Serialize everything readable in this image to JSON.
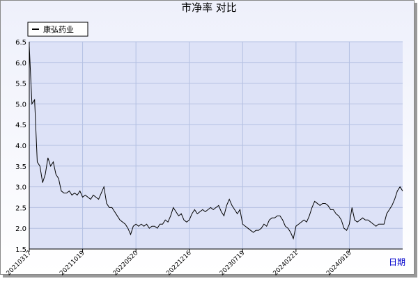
{
  "chart_data": {
    "type": "line",
    "title": "市净率  对比",
    "x_label": "日期",
    "ylim": [
      1.5,
      6.5
    ],
    "yticks": [
      1.5,
      {
        "value": 2,
        "label": "2.0"
      },
      2.5,
      {
        "value": 3,
        "label": "3.0"
      },
      3.5,
      {
        "value": 4,
        "label": "4.0"
      },
      4.5,
      {
        "value": 5,
        "label": "5.0"
      },
      5.5,
      {
        "value": 6,
        "label": "6.0"
      },
      6.5
    ],
    "xlim": [
      0,
      140
    ],
    "xticks": [
      {
        "value": 0,
        "label": "20210317"
      },
      {
        "value": 20,
        "label": "20211019"
      },
      {
        "value": 40,
        "label": "20220520"
      },
      {
        "value": 60,
        "label": "20221216"
      },
      {
        "value": 80,
        "label": "20230719"
      },
      {
        "value": 100,
        "label": "20240221"
      },
      {
        "value": 120,
        "label": "20240918"
      }
    ],
    "grid": true,
    "legend": "top-left",
    "series": [
      {
        "name": "康弘药业",
        "color": "#000000",
        "values": [
          6.4,
          5.0,
          5.1,
          3.6,
          3.5,
          3.1,
          3.3,
          3.7,
          3.5,
          3.6,
          3.3,
          3.2,
          2.9,
          2.85,
          2.85,
          2.9,
          2.8,
          2.85,
          2.8,
          2.9,
          2.75,
          2.8,
          2.75,
          2.7,
          2.8,
          2.75,
          2.7,
          2.85,
          3.0,
          2.6,
          2.5,
          2.5,
          2.4,
          2.3,
          2.2,
          2.15,
          2.1,
          2.0,
          1.85,
          2.05,
          2.1,
          2.05,
          2.1,
          2.05,
          2.1,
          2.0,
          2.05,
          2.05,
          2.0,
          2.1,
          2.1,
          2.2,
          2.15,
          2.3,
          2.5,
          2.4,
          2.3,
          2.35,
          2.2,
          2.15,
          2.2,
          2.35,
          2.45,
          2.35,
          2.4,
          2.45,
          2.4,
          2.45,
          2.5,
          2.45,
          2.5,
          2.55,
          2.4,
          2.3,
          2.55,
          2.7,
          2.55,
          2.45,
          2.35,
          2.45,
          2.1,
          2.05,
          2.0,
          1.95,
          1.9,
          1.95,
          1.95,
          2.0,
          2.1,
          2.05,
          2.2,
          2.25,
          2.25,
          2.3,
          2.3,
          2.2,
          2.05,
          2.0,
          1.9,
          1.75,
          2.05,
          2.1,
          2.15,
          2.2,
          2.15,
          2.3,
          2.5,
          2.65,
          2.6,
          2.55,
          2.6,
          2.6,
          2.55,
          2.45,
          2.45,
          2.35,
          2.3,
          2.2,
          2.0,
          1.95,
          2.1,
          2.5,
          2.2,
          2.15,
          2.2,
          2.25,
          2.2,
          2.2,
          2.15,
          2.1,
          2.05,
          2.1,
          2.1,
          2.1,
          2.35,
          2.45,
          2.55,
          2.7,
          2.9,
          3.0,
          2.9
        ]
      }
    ]
  }
}
